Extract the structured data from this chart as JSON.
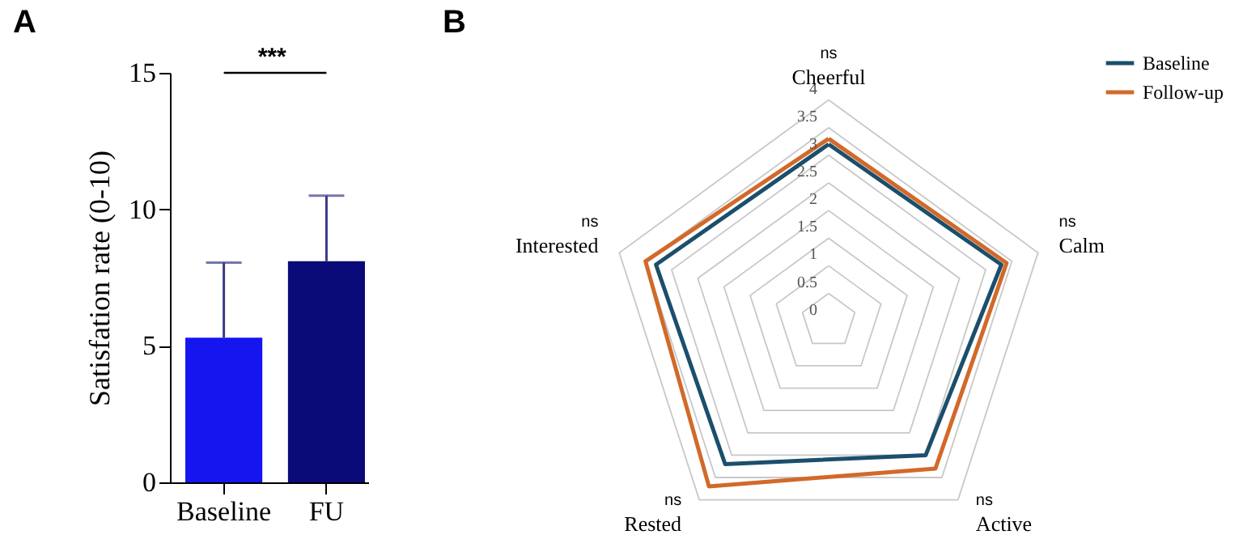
{
  "chart_data": [
    {
      "type": "bar",
      "title": "A",
      "ylabel": "Satisfation rate (0-10)",
      "categories": [
        "Baseline",
        "FU"
      ],
      "values": [
        5.3,
        8.1
      ],
      "colors": [
        "#1515f0",
        "#0a0a78"
      ],
      "errors": [
        [
          5.3,
          8.05
        ],
        [
          8.1,
          10.5
        ]
      ],
      "ylim": [
        0,
        15
      ],
      "yticks": [
        0,
        5,
        10,
        15
      ],
      "grid": false,
      "annotations": [
        "***"
      ]
    },
    {
      "type": "radar",
      "title": "B",
      "categories": [
        "Cheerful",
        "Calm",
        "Active",
        "Rested",
        "Interested"
      ],
      "series": [
        {
          "name": "Baseline",
          "color": "#1b4f6b",
          "values": [
            3.2,
            3.3,
            3.0,
            3.2,
            3.3
          ]
        },
        {
          "name": "Follow-up",
          "color": "#d2692a",
          "values": [
            3.3,
            3.4,
            3.3,
            3.7,
            3.5
          ]
        }
      ],
      "ylim": [
        0,
        4
      ],
      "yticks": [
        0,
        0.5,
        1,
        1.5,
        2,
        2.5,
        3,
        3.5,
        4
      ],
      "grid": true,
      "legend": "right",
      "annotations": [
        {
          "text": "ns",
          "x": "Cheerful"
        },
        {
          "text": "ns",
          "x": "Calm"
        },
        {
          "text": "ns",
          "x": "Active"
        },
        {
          "text": "ns",
          "x": "Rested"
        },
        {
          "text": "ns",
          "x": "Interested"
        }
      ]
    }
  ]
}
